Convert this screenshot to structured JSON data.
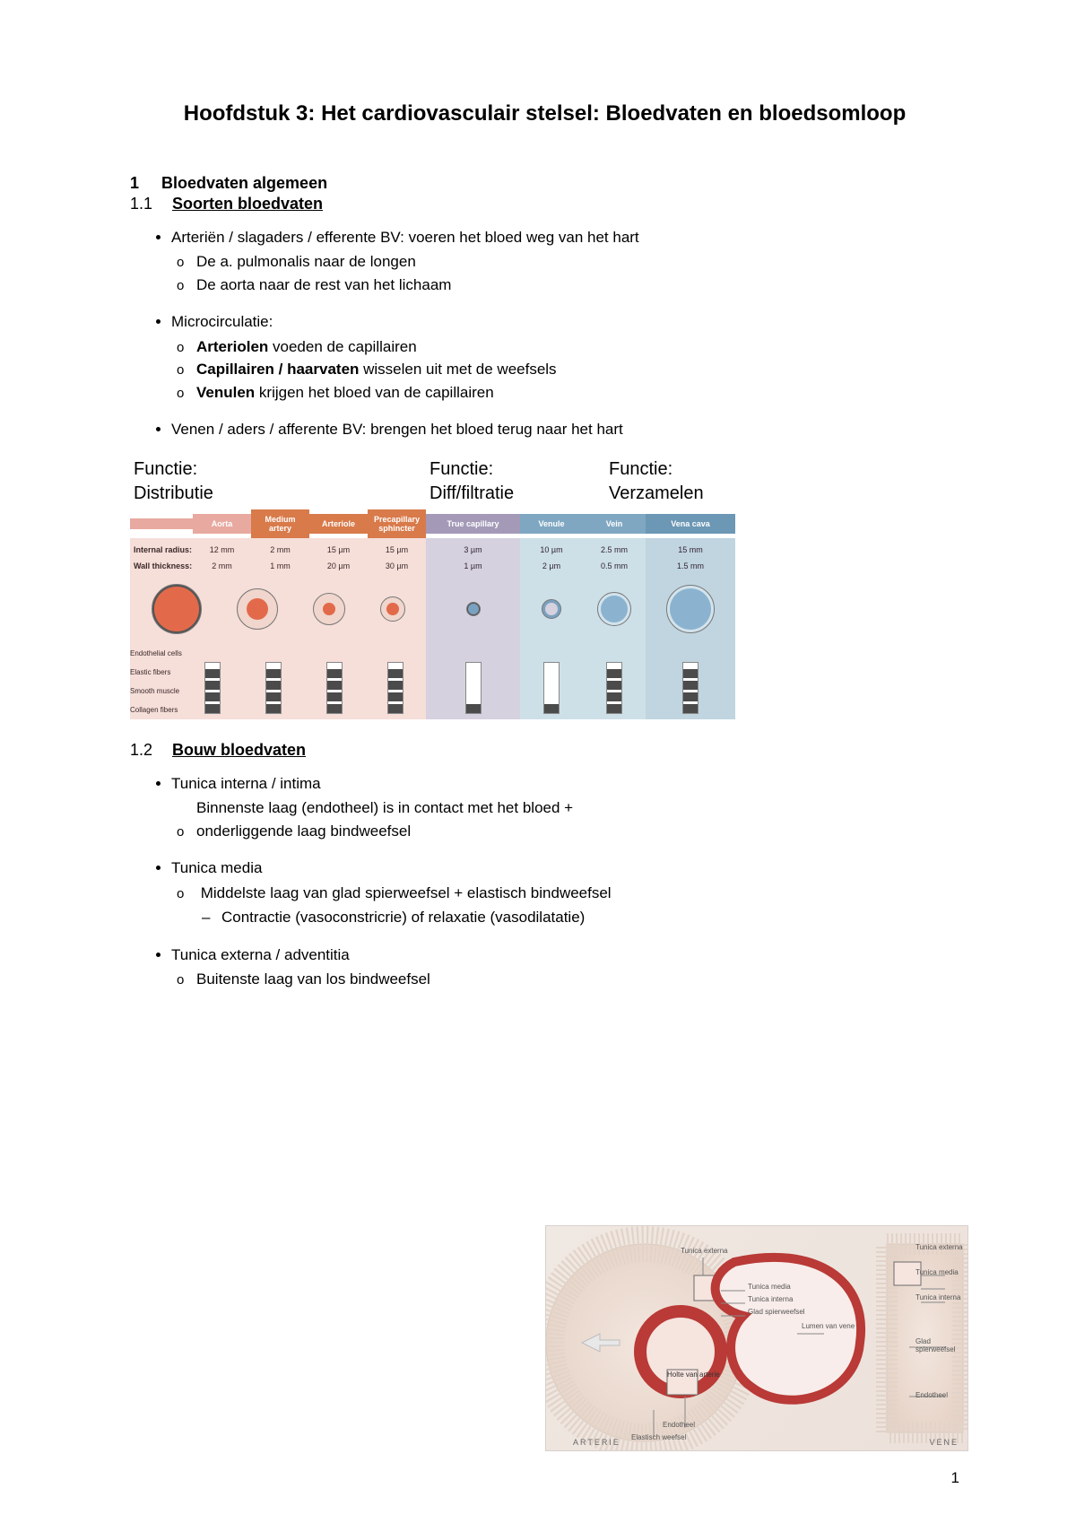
{
  "page_number": "1",
  "title": "Hoofdstuk 3: Het cardiovasculair stelsel: Bloedvaten en bloedsomloop",
  "sec1": {
    "num": "1",
    "title": "Bloedvaten algemeen"
  },
  "sec1_1": {
    "num": "1.1",
    "title": "Soorten bloedvaten"
  },
  "bul1": {
    "a": "Arteriën / slagaders / efferente BV: voeren het bloed weg van het hart",
    "a1": "De a. pulmonalis naar de longen",
    "a2": "De aorta naar de rest van het lichaam",
    "b": "Microcirculatie:",
    "b1a": "Arteriolen",
    "b1b": " voeden de capillairen",
    "b2a": "Capillairen / haarvaten",
    "b2b": " wisselen uit met de weefsels",
    "b3a": "Venulen",
    "b3b": " krijgen het bloed van de capillairen",
    "c": "Venen / aders / afferente BV: brengen het bloed terug naar het hart"
  },
  "vessel_cmp": {
    "func_label": "Functie:",
    "group_labels": [
      "Distributie",
      "Diff/filtratie",
      "Verzamelen"
    ],
    "columns": [
      "Aorta",
      "Medium artery",
      "Arteriole",
      "Precapillary sphincter",
      "True capillary",
      "Venule",
      "Vein",
      "Vena cava"
    ],
    "header_colors": [
      "#e8a9a0",
      "#d87a4a",
      "#d87a4a",
      "#d87a4a",
      "#a49ab8",
      "#7fa7c2",
      "#7fa7c2",
      "#6c97b5"
    ],
    "pane_colors": {
      "pink": "#f6ded9",
      "purple": "#d5d1df",
      "blue": "#cde0e8",
      "blue2": "#c0d5e0"
    },
    "rows": {
      "r1_label": "Internal radius:",
      "r1": [
        "12 mm",
        "2 mm",
        "15 µm",
        "15 µm",
        "3 µm",
        "10 µm",
        "2.5 mm",
        "15 mm"
      ],
      "r2_label": "Wall thickness:",
      "r2": [
        "2 mm",
        "1 mm",
        "20 µm",
        "30 µm",
        "1 µm",
        "2 µm",
        "0.5 mm",
        "1.5 mm"
      ]
    },
    "circles": [
      {
        "d": 54,
        "border": 2,
        "fill": "#e26a4a",
        "ring": "#555"
      },
      {
        "d": 44,
        "border": 10,
        "fill": "#e26a4a",
        "ring": "#f0d6cc"
      },
      {
        "d": 34,
        "border": 10,
        "fill": "#e26a4a",
        "ring": "#f0d6cc"
      },
      {
        "d": 26,
        "border": 6,
        "fill": "#e26a4a",
        "ring": "#f0d6cc"
      },
      {
        "d": 14,
        "border": 1,
        "fill": "#7aa1bf",
        "ring": "#555"
      },
      {
        "d": 20,
        "border": 3,
        "fill": "#d5d1df",
        "ring": "#7aa1bf"
      },
      {
        "d": 36,
        "border": 3,
        "fill": "#8bb3cf",
        "ring": "#d2e3ec"
      },
      {
        "d": 52,
        "border": 3,
        "fill": "#8bb3cf",
        "ring": "#d2e3ec"
      }
    ],
    "comp_labels": [
      "Endothelial cells",
      "Elastic fibers",
      "Smooth muscle",
      "Collagen fibers"
    ],
    "comp_matrix": [
      [
        1,
        1,
        1,
        1,
        1,
        1,
        1,
        1
      ],
      [
        1,
        1,
        1,
        1,
        0,
        0,
        1,
        1
      ],
      [
        1,
        1,
        1,
        1,
        0,
        0,
        1,
        1
      ],
      [
        1,
        1,
        1,
        1,
        0,
        0,
        1,
        1
      ]
    ]
  },
  "sec1_2": {
    "num": "1.2",
    "title": "Bouw bloedvaten"
  },
  "bul2": {
    "a": "Tunica interna / intima",
    "a1": "Binnenste laag (endotheel) is in contact met het bloed + onderliggende laag bindweefsel",
    "b": "Tunica media",
    "b1": "Middelste laag van glad spierweefsel + elastisch bindweefsel",
    "b1s": "Contractie (vasoconstricrie) of relaxatie (vasodilatatie)",
    "c": "Tunica externa / adventitia",
    "c1": "Buitenste laag van los bindweefsel"
  },
  "diagram2": {
    "labels": {
      "tx": "Tunica externa",
      "tm": "Tunica media",
      "ti": "Tunica interna",
      "gs": "Glad spierweefsel",
      "lv": "Lumen van vene",
      "hva": "Holte van arterie",
      "end": "Endotheel",
      "eb": "Elastisch weefsel",
      "te2": "Tunica externa",
      "tm2": "Tunica media",
      "ti2": "Tunica interna",
      "gs2": "Glad spierweefsel",
      "end2": "Endotheel"
    },
    "bottom_left": "ARTERIE",
    "bottom_right": "VENE",
    "colors": {
      "artery_wall": "#b93a36",
      "artery_fill": "#f3d9d5",
      "vein_wall": "#c98d88",
      "bg": "#efe6df"
    }
  }
}
